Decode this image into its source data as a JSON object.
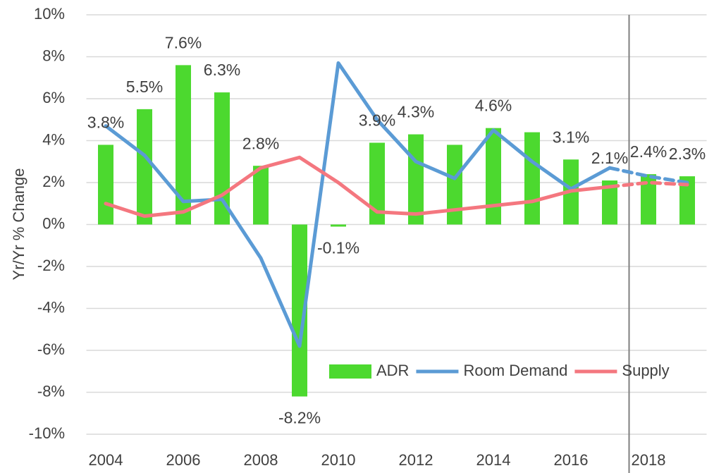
{
  "chart_data": {
    "type": "bar_line",
    "y_axis_label": "Yr/Yr % Change",
    "categories": [
      "2004",
      null,
      "2006",
      null,
      "2008",
      null,
      "2010",
      null,
      "2012",
      null,
      "2014",
      null,
      "2016",
      null,
      "2018",
      null
    ],
    "ylim": [
      -10,
      10
    ],
    "yticks": [
      {
        "value": -10,
        "label": "-10%"
      },
      {
        "value": -8,
        "label": "-8%"
      },
      {
        "value": -6,
        "label": "-6%"
      },
      {
        "value": -4,
        "label": "-4%"
      },
      {
        "value": -2,
        "label": "-2%"
      },
      {
        "value": 0,
        "label": "0%"
      },
      {
        "value": 2,
        "label": "2%"
      },
      {
        "value": 4,
        "label": "4%"
      },
      {
        "value": 6,
        "label": "6%"
      },
      {
        "value": 8,
        "label": "8%"
      },
      {
        "value": 10,
        "label": "10%"
      }
    ],
    "grid": true,
    "legend": "bottom-right",
    "forecast_start_index": 14,
    "series": [
      {
        "name": "ADR",
        "kind": "bar",
        "color": "#4cd92f",
        "values": [
          3.8,
          5.5,
          7.6,
          6.3,
          2.8,
          -8.2,
          -0.1,
          3.9,
          4.3,
          3.8,
          4.6,
          4.4,
          3.1,
          2.1,
          2.4,
          2.3
        ],
        "value_labels": [
          "3.8%",
          "5.5%",
          "7.6%",
          "6.3%",
          "2.8%",
          "-8.2%",
          "-0.1%",
          "3.9%",
          "4.3%",
          null,
          "4.6%",
          null,
          "3.1%",
          "2.1%",
          "2.4%",
          "2.3%"
        ]
      },
      {
        "name": "Room Demand",
        "kind": "line",
        "color": "#5b9bd5",
        "values": [
          4.7,
          3.3,
          1.1,
          1.2,
          -1.6,
          -5.8,
          7.7,
          5.0,
          3.0,
          2.2,
          4.5,
          3.0,
          1.7,
          2.7,
          2.3,
          2.0
        ]
      },
      {
        "name": "Supply",
        "kind": "line",
        "color": "#f4777f",
        "values": [
          1.0,
          0.4,
          0.6,
          1.4,
          2.7,
          3.2,
          2.0,
          0.6,
          0.5,
          0.7,
          0.9,
          1.1,
          1.6,
          1.8,
          2.0,
          1.9
        ]
      }
    ]
  }
}
